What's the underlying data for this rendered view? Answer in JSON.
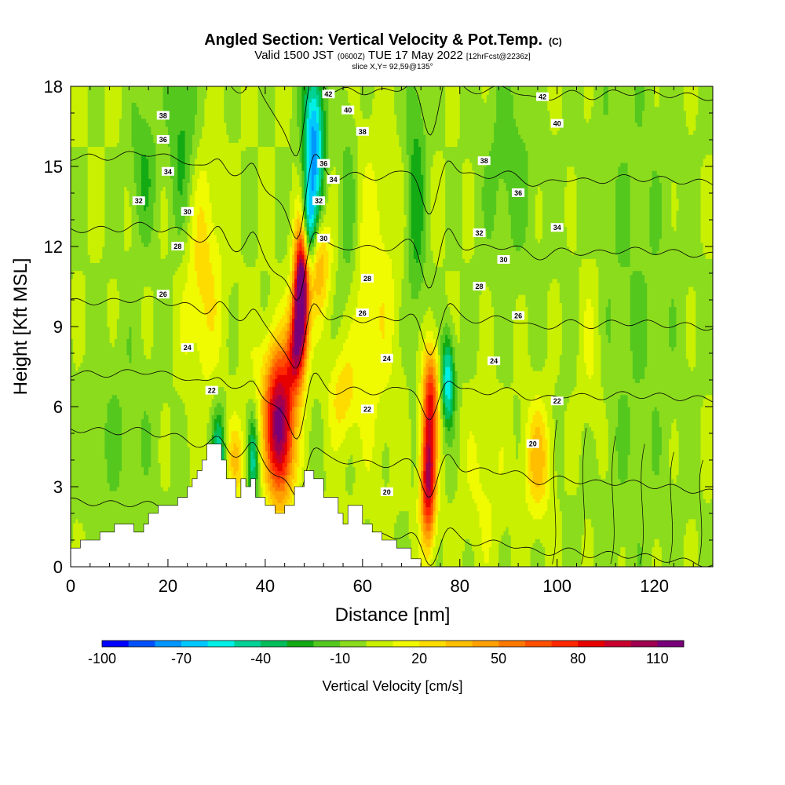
{
  "chart_data": {
    "type": "heatmap",
    "title": "Angled Section: Vertical Velocity & Pot.Temp.",
    "title_suffix": "(C)",
    "subtitle_main": "Valid 1500 JST",
    "subtitle_z": "(0600Z)",
    "subtitle_date": "TUE 17 May 2022",
    "subtitle_fcst": "[12hrFcst@2236z]",
    "subtitle2": "slice X,Y= 92,59@135°",
    "xlabel": "Distance [nm]",
    "ylabel": "Height [Kft MSL]",
    "xlim": [
      0,
      132
    ],
    "ylim": [
      0,
      18
    ],
    "xticks": [
      "0",
      "20",
      "40",
      "60",
      "80",
      "100",
      "120"
    ],
    "yticks": [
      "0",
      "3",
      "6",
      "9",
      "12",
      "15",
      "18"
    ],
    "colorbar": {
      "label": "Vertical Velocity [cm/s]",
      "min": -100,
      "max": 120,
      "step": 10,
      "tick_labels": [
        "-100",
        "-70",
        "-40",
        "-10",
        "20",
        "50",
        "80",
        "110"
      ],
      "colors": [
        "#0000ff",
        "#0050ff",
        "#0096ff",
        "#00c8ff",
        "#00f0e6",
        "#00d296",
        "#00be5a",
        "#14aa14",
        "#55c81e",
        "#8cdc1e",
        "#c8f000",
        "#f0fa00",
        "#ffdc00",
        "#ffbe00",
        "#ffa000",
        "#ff7800",
        "#ff5000",
        "#ff2800",
        "#e60000",
        "#c8002d",
        "#a00050",
        "#780078"
      ]
    },
    "theta_contours": [
      "20",
      "22",
      "24",
      "26",
      "28",
      "30",
      "32",
      "34",
      "36",
      "38",
      "40",
      "42"
    ],
    "contour_labels": [
      {
        "t": "42",
        "x": 53,
        "y": 17.7
      },
      {
        "t": "42",
        "x": 97,
        "y": 17.6
      },
      {
        "t": "40",
        "x": 57,
        "y": 17.1
      },
      {
        "t": "40",
        "x": 100,
        "y": 16.6
      },
      {
        "t": "38",
        "x": 19,
        "y": 16.9
      },
      {
        "t": "38",
        "x": 60,
        "y": 16.3
      },
      {
        "t": "38",
        "x": 85,
        "y": 15.2
      },
      {
        "t": "36",
        "x": 19,
        "y": 16.0
      },
      {
        "t": "36",
        "x": 52,
        "y": 15.1
      },
      {
        "t": "36",
        "x": 92,
        "y": 14.0
      },
      {
        "t": "34",
        "x": 20,
        "y": 14.8
      },
      {
        "t": "34",
        "x": 54,
        "y": 14.5
      },
      {
        "t": "34",
        "x": 100,
        "y": 12.7
      },
      {
        "t": "32",
        "x": 14,
        "y": 13.7
      },
      {
        "t": "32",
        "x": 51,
        "y": 13.7
      },
      {
        "t": "32",
        "x": 84,
        "y": 12.5
      },
      {
        "t": "30",
        "x": 24,
        "y": 13.3
      },
      {
        "t": "30",
        "x": 52,
        "y": 12.3
      },
      {
        "t": "30",
        "x": 89,
        "y": 11.5
      },
      {
        "t": "28",
        "x": 22,
        "y": 12.0
      },
      {
        "t": "28",
        "x": 61,
        "y": 10.8
      },
      {
        "t": "28",
        "x": 84,
        "y": 10.5
      },
      {
        "t": "26",
        "x": 19,
        "y": 10.2
      },
      {
        "t": "26",
        "x": 60,
        "y": 9.5
      },
      {
        "t": "26",
        "x": 92,
        "y": 9.4
      },
      {
        "t": "24",
        "x": 24,
        "y": 8.2
      },
      {
        "t": "24",
        "x": 65,
        "y": 7.8
      },
      {
        "t": "24",
        "x": 87,
        "y": 7.7
      },
      {
        "t": "22",
        "x": 29,
        "y": 6.6
      },
      {
        "t": "22",
        "x": 61,
        "y": 5.9
      },
      {
        "t": "22",
        "x": 100,
        "y": 6.2
      },
      {
        "t": "20",
        "x": 65,
        "y": 2.8
      },
      {
        "t": "20",
        "x": 95,
        "y": 4.6
      }
    ],
    "terrain": [
      [
        0,
        0.7
      ],
      [
        2,
        0.7
      ],
      [
        2,
        1.0
      ],
      [
        6,
        1.0
      ],
      [
        6,
        1.3
      ],
      [
        9,
        1.3
      ],
      [
        9,
        1.6
      ],
      [
        13,
        1.6
      ],
      [
        13,
        1.3
      ],
      [
        15,
        1.3
      ],
      [
        15,
        1.6
      ],
      [
        16,
        1.6
      ],
      [
        16,
        2.0
      ],
      [
        18,
        2.0
      ],
      [
        18,
        2.3
      ],
      [
        22,
        2.3
      ],
      [
        22,
        2.6
      ],
      [
        24,
        2.6
      ],
      [
        24,
        3.0
      ],
      [
        25,
        3.0
      ],
      [
        25,
        3.3
      ],
      [
        26,
        3.3
      ],
      [
        26,
        3.6
      ],
      [
        27,
        3.6
      ],
      [
        27,
        4.0
      ],
      [
        28,
        4.0
      ],
      [
        28,
        4.6
      ],
      [
        31,
        4.6
      ],
      [
        31,
        4.0
      ],
      [
        32,
        4.0
      ],
      [
        32,
        3.3
      ],
      [
        34,
        3.3
      ],
      [
        34,
        2.6
      ],
      [
        35,
        2.6
      ],
      [
        35,
        3.3
      ],
      [
        36,
        3.3
      ],
      [
        36,
        3.0
      ],
      [
        37,
        3.0
      ],
      [
        37,
        3.3
      ],
      [
        38,
        3.3
      ],
      [
        38,
        2.6
      ],
      [
        40,
        2.6
      ],
      [
        40,
        2.3
      ],
      [
        42,
        2.3
      ],
      [
        42,
        2.0
      ],
      [
        44,
        2.0
      ],
      [
        44,
        2.3
      ],
      [
        46,
        2.3
      ],
      [
        46,
        3.0
      ],
      [
        48,
        3.0
      ],
      [
        48,
        3.6
      ],
      [
        50,
        3.6
      ],
      [
        50,
        3.3
      ],
      [
        52,
        3.3
      ],
      [
        52,
        2.6
      ],
      [
        55,
        2.6
      ],
      [
        55,
        2.0
      ],
      [
        56,
        2.0
      ],
      [
        56,
        1.6
      ],
      [
        57,
        1.6
      ],
      [
        57,
        2.3
      ],
      [
        60,
        2.3
      ],
      [
        60,
        1.6
      ],
      [
        62,
        1.6
      ],
      [
        62,
        1.3
      ],
      [
        64,
        1.3
      ],
      [
        64,
        1.0
      ],
      [
        67,
        1.0
      ],
      [
        67,
        0.7
      ],
      [
        70,
        0.7
      ],
      [
        70,
        0.3
      ],
      [
        72,
        0.3
      ],
      [
        72,
        0
      ]
    ],
    "cells": [
      {
        "x": 43,
        "y": 5.0,
        "sx": 2.0,
        "sy": 1.8,
        "w": 110
      },
      {
        "x": 47.5,
        "y": 10.8,
        "sx": 1.0,
        "sy": 1.6,
        "w": 95
      },
      {
        "x": 47,
        "y": 9.3,
        "sx": 1.2,
        "sy": 1.4,
        "w": 80
      },
      {
        "x": 46,
        "y": 7.8,
        "sx": 1.2,
        "sy": 1.0,
        "w": 50
      },
      {
        "x": 73.5,
        "y": 3.2,
        "sx": 1.1,
        "sy": 1.6,
        "w": 100
      },
      {
        "x": 74,
        "y": 6.4,
        "sx": 1.2,
        "sy": 1.4,
        "w": 70
      },
      {
        "x": 51,
        "y": 11.3,
        "sx": 1.6,
        "sy": 1.3,
        "w": 40
      },
      {
        "x": 42,
        "y": 7.0,
        "sx": 3.0,
        "sy": 1.5,
        "w": 25
      },
      {
        "x": 96,
        "y": 4.0,
        "sx": 2.0,
        "sy": 1.5,
        "w": 35
      },
      {
        "x": 34,
        "y": 4.0,
        "sx": 1.5,
        "sy": 1.0,
        "w": 30
      },
      {
        "x": 27,
        "y": 11.0,
        "sx": 3.0,
        "sy": 3.0,
        "w": 25
      },
      {
        "x": 62,
        "y": 10.0,
        "sx": 4.0,
        "sy": 4.0,
        "w": 18
      },
      {
        "x": 50,
        "y": 16.0,
        "sx": 1.5,
        "sy": 2.0,
        "w": -75
      },
      {
        "x": 49,
        "y": 12.8,
        "sx": 1.0,
        "sy": 1.2,
        "w": -55
      },
      {
        "x": 77.5,
        "y": 7.0,
        "sx": 1.0,
        "sy": 1.2,
        "w": -60
      },
      {
        "x": 30.5,
        "y": 4.0,
        "sx": 1.0,
        "sy": 1.3,
        "w": -50
      },
      {
        "x": 37.5,
        "y": 4.0,
        "sx": 0.8,
        "sy": 1.2,
        "w": -45
      },
      {
        "x": 23,
        "y": 16.0,
        "sx": 2.0,
        "sy": 3.0,
        "w": -25
      },
      {
        "x": 71,
        "y": 14.0,
        "sx": 1.5,
        "sy": 4.0,
        "w": -25
      },
      {
        "x": 57,
        "y": 13.0,
        "sx": 1.5,
        "sy": 3.0,
        "w": -20
      },
      {
        "x": 15,
        "y": 15.0,
        "sx": 2.0,
        "sy": 2.0,
        "w": -20
      },
      {
        "x": 90,
        "y": 15.0,
        "sx": 4.0,
        "sy": 3.0,
        "w": -15
      },
      {
        "x": 10,
        "y": 5.0,
        "sx": 6.0,
        "sy": 3.0,
        "w": -10
      },
      {
        "x": 115,
        "y": 10.0,
        "sx": 8.0,
        "sy": 8.0,
        "w": -10
      },
      {
        "x": 107,
        "y": 8.0,
        "sx": 2.0,
        "sy": 3.0,
        "w": 15
      },
      {
        "x": 85,
        "y": 3.0,
        "sx": 3.0,
        "sy": 2.0,
        "w": 12
      },
      {
        "x": 56,
        "y": 6.5,
        "sx": 2.0,
        "sy": 1.2,
        "w": 25
      }
    ]
  }
}
